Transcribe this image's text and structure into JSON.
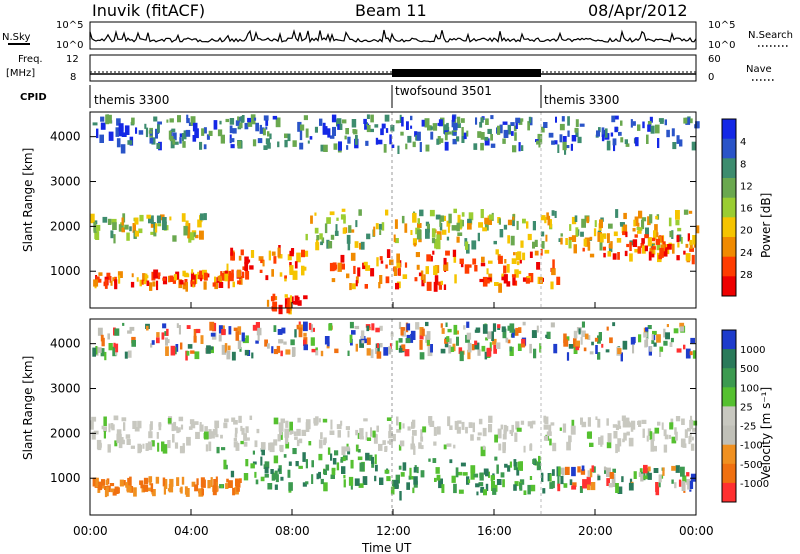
{
  "header": {
    "station": "Inuvik (fitACF)",
    "beam": "Beam 11",
    "date": "08/Apr/2012"
  },
  "strips": {
    "nsky_label": "N.Sky",
    "nsky_ticks": [
      "10^5",
      "10^0"
    ],
    "nsearch_label": "N.Search",
    "nsearch_ticks": [
      "10^5",
      "10^0"
    ],
    "freq_label": "Freq.",
    "freq_unit": "[MHz]",
    "freq_ticks": [
      "12",
      "8"
    ],
    "nave_label": "Nave",
    "nave_ticks": [
      "60",
      "0"
    ],
    "cpid_label": "CPID"
  },
  "cpid_segments": [
    {
      "label": "themis 3300",
      "start_hour": 0,
      "end_hour": 12
    },
    {
      "label": "twofsound 3501",
      "start_hour": 12,
      "end_hour": 18
    },
    {
      "label": "themis 3300",
      "start_hour": 18,
      "end_hour": 24
    }
  ],
  "chart_data": [
    {
      "type": "heatmap",
      "panel": "power",
      "ylabel": "Slant Range [km]",
      "xlabel": "",
      "ylim": [
        180,
        4550
      ],
      "xlim": [
        0,
        24
      ],
      "y_ticks": [
        "1000",
        "2000",
        "3000",
        "4000"
      ],
      "x_ticks": [
        "00:00",
        "04:00",
        "08:00",
        "12:00",
        "16:00",
        "20:00",
        "00:00"
      ],
      "colorbar": {
        "label": "Power [dB]",
        "ticks": [
          "4",
          "8",
          "12",
          "16",
          "20",
          "24",
          "28"
        ],
        "colors": [
          "#1428e6",
          "#2a54c8",
          "#3d8c6e",
          "#6aa84f",
          "#9acd32",
          "#f5c400",
          "#f08a00",
          "#ff3c00",
          "#ee0000"
        ]
      },
      "echo_bands": [
        {
          "start_hour": 0.0,
          "end_hour": 6.0,
          "range_km": [
            750,
            1050
          ],
          "level": "high"
        },
        {
          "start_hour": 0.0,
          "end_hour": 4.5,
          "range_km": [
            1800,
            2300
          ],
          "level": "medium"
        },
        {
          "start_hour": 5.0,
          "end_hour": 8.5,
          "range_km": [
            850,
            1600
          ],
          "level": "high"
        },
        {
          "start_hour": 7.0,
          "end_hour": 8.5,
          "range_km": [
            200,
            500
          ],
          "level": "high"
        },
        {
          "start_hour": 9.5,
          "end_hour": 18.5,
          "range_km": [
            700,
            1500
          ],
          "level": "high"
        },
        {
          "start_hour": 8.5,
          "end_hour": 24.0,
          "range_km": [
            1600,
            2400
          ],
          "level": "medium"
        },
        {
          "start_hour": 19.5,
          "end_hour": 24.0,
          "range_km": [
            1350,
            1900
          ],
          "level": "high"
        },
        {
          "start_hour": 0.0,
          "end_hour": 24.0,
          "range_km": [
            3800,
            4500
          ],
          "level": "low"
        }
      ]
    },
    {
      "type": "heatmap",
      "panel": "velocity",
      "ylabel": "Slant Range [km]",
      "xlabel": "Time UT",
      "ylim": [
        180,
        4550
      ],
      "xlim": [
        0,
        24
      ],
      "y_ticks": [
        "1000",
        "2000",
        "3000",
        "4000"
      ],
      "x_ticks": [
        "00:00",
        "04:00",
        "08:00",
        "12:00",
        "16:00",
        "20:00",
        "00:00"
      ],
      "colorbar": {
        "label": "Velocity [m s⁻¹]",
        "ticks": [
          "1000",
          "500",
          "100",
          "25",
          "-25",
          "-100",
          "-500",
          "-1000"
        ],
        "colors": [
          "#1e3ccc",
          "#2a7a5a",
          "#3c9a50",
          "#55c030",
          "#c8c8c0",
          "#c0c0b8",
          "#f09020",
          "#f07010",
          "#ff3030"
        ]
      },
      "echo_bands": [
        {
          "start_hour": 0.0,
          "end_hour": 6.0,
          "range_km": [
            750,
            1050
          ],
          "flow": "away-orange"
        },
        {
          "start_hour": 5.0,
          "end_hour": 11.5,
          "range_km": [
            850,
            1700
          ],
          "flow": "toward-green"
        },
        {
          "start_hour": 11.5,
          "end_hour": 18.5,
          "range_km": [
            700,
            1500
          ],
          "flow": "toward-green"
        },
        {
          "start_hour": 0.0,
          "end_hour": 24.0,
          "range_km": [
            1700,
            2400
          ],
          "flow": "near-zero-grey"
        },
        {
          "start_hour": 18.5,
          "end_hour": 24.0,
          "range_km": [
            800,
            1300
          ],
          "flow": "mixed"
        },
        {
          "start_hour": 0.0,
          "end_hour": 24.0,
          "range_km": [
            3800,
            4500
          ],
          "flow": "mixed"
        }
      ]
    }
  ]
}
